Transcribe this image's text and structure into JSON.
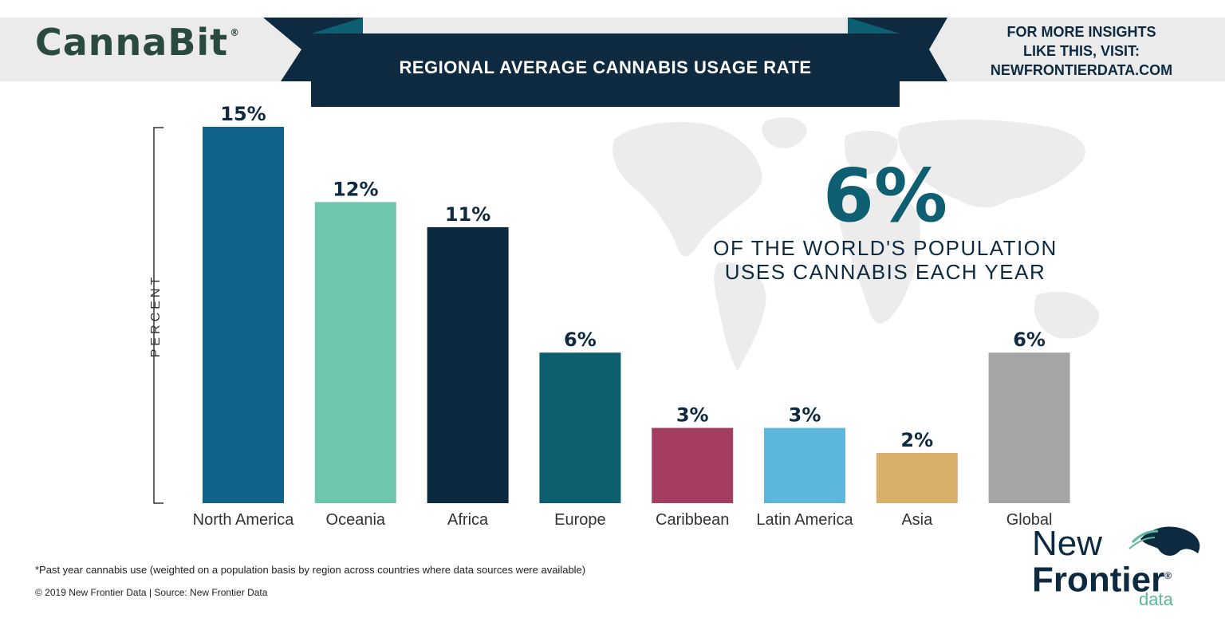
{
  "brand": {
    "name": "CannaBit",
    "mark": "®"
  },
  "banner": {
    "title": "REGIONAL AVERAGE CANNABIS USAGE RATE"
  },
  "insights": {
    "line1": "FOR MORE INSIGHTS",
    "line2": "LIKE THIS, VISIT:",
    "line3": "NEWFRONTIERDATA.COM"
  },
  "stat": {
    "value": "6%",
    "line1": "OF THE WORLD'S POPULATION",
    "line2": "USES CANNABIS EACH YEAR"
  },
  "footnote": "*Past year cannabis use (weighted on a population basis by region across countries where data sources were available)",
  "copyright": "© 2019  New Frontier Data | Source:  New Frontier Data",
  "nf_logo": {
    "line1": "New",
    "line2": "Frontier",
    "mark": "®",
    "line3": "data"
  },
  "colors": {
    "band": "#ebebeb",
    "banner": "#0e2a40",
    "banner_fold": "#0e5f72",
    "map": "#ececec",
    "label": "#0e2a40"
  },
  "chart_data": {
    "type": "bar",
    "title": "REGIONAL AVERAGE CANNABIS USAGE RATE",
    "ylabel": "PERCENT",
    "xlabel": "",
    "categories": [
      "North America",
      "Oceania",
      "Africa",
      "Europe",
      "Caribbean",
      "Latin America",
      "Asia",
      "Global"
    ],
    "values": [
      15,
      12,
      11,
      6,
      3,
      3,
      2,
      6
    ],
    "value_labels": [
      "15%",
      "12%",
      "11%",
      "6%",
      "3%",
      "3%",
      "2%",
      "6%"
    ],
    "colors": [
      "#11628a",
      "#6ec6ae",
      "#0b2a3f",
      "#0d5f70",
      "#a33e62",
      "#5db7dc",
      "#d8b06a",
      "#a5a5a5"
    ],
    "ylim": [
      0,
      15
    ],
    "grid": false,
    "legend": "none"
  }
}
